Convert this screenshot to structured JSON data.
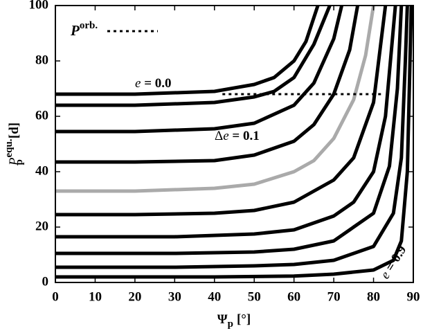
{
  "chart_data": {
    "type": "line",
    "xlabel": {
      "main": "Ψ",
      "sub": "p",
      "unit": "[°]"
    },
    "ylabel": {
      "main": "P",
      "sub": "p",
      "sup": "equ.",
      "unit": "[d]"
    },
    "xlim": [
      0,
      90
    ],
    "xticks": [
      0,
      10,
      20,
      30,
      40,
      50,
      60,
      70,
      80,
      90
    ],
    "ylim": [
      0,
      100
    ],
    "yticks": [
      0,
      20,
      40,
      60,
      80,
      100
    ],
    "series": [
      {
        "color": "#000000",
        "x": [
          0,
          20,
          40,
          50,
          55,
          60,
          63,
          66
        ],
        "values": [
          68,
          68,
          69,
          71.5,
          74,
          80,
          87,
          100
        ]
      },
      {
        "color": "#000000",
        "x": [
          0,
          20,
          40,
          50,
          55,
          60,
          65,
          69
        ],
        "values": [
          64,
          64,
          65,
          67,
          69,
          74,
          86,
          100
        ]
      },
      {
        "color": "#000000",
        "x": [
          0,
          20,
          40,
          50,
          60,
          65,
          70,
          72
        ],
        "values": [
          54.5,
          54.5,
          55.5,
          57.5,
          64,
          72,
          88,
          100
        ]
      },
      {
        "color": "#000000",
        "x": [
          0,
          20,
          40,
          50,
          60,
          65,
          70,
          74,
          76
        ],
        "values": [
          43.5,
          43.5,
          44,
          46,
          51,
          57,
          68,
          84,
          100
        ]
      },
      {
        "color": "#aaaaaa",
        "x": [
          0,
          20,
          40,
          50,
          60,
          65,
          70,
          75,
          78,
          80
        ],
        "values": [
          33,
          33,
          34,
          35.5,
          40,
          44,
          52,
          66,
          82,
          100
        ]
      },
      {
        "color": "#000000",
        "x": [
          0,
          20,
          40,
          50,
          60,
          70,
          75,
          80,
          83
        ],
        "values": [
          24.5,
          24.5,
          25,
          26,
          29,
          37,
          45,
          65,
          100
        ]
      },
      {
        "color": "#000000",
        "x": [
          0,
          30,
          50,
          60,
          70,
          75,
          80,
          83,
          85.5
        ],
        "values": [
          16.5,
          16.5,
          17.5,
          19,
          24,
          29,
          40,
          60,
          100
        ]
      },
      {
        "color": "#000000",
        "x": [
          0,
          30,
          50,
          60,
          70,
          80,
          84,
          86,
          87
        ],
        "values": [
          10.5,
          10.5,
          11,
          12,
          15,
          25,
          42,
          70,
          100
        ]
      },
      {
        "color": "#000000",
        "x": [
          0,
          30,
          50,
          60,
          70,
          80,
          85,
          87,
          88,
          88.5
        ],
        "values": [
          5.5,
          5.5,
          6,
          6.5,
          8,
          13,
          25,
          45,
          80,
          100
        ]
      },
      {
        "color": "#000000",
        "x": [
          0,
          40,
          60,
          70,
          80,
          85,
          87,
          88.5,
          89.5
        ],
        "values": [
          2,
          2,
          2.3,
          3,
          4.5,
          8,
          15,
          40,
          100
        ]
      }
    ],
    "orbital_period": {
      "value": 68,
      "xrange": [
        42,
        82
      ],
      "label_main": "P",
      "label_sup": "orb."
    },
    "annotations": [
      {
        "parts": [
          "e",
          " = 0.0"
        ]
      },
      {
        "parts": [
          "Δ",
          "e",
          " = 0.1"
        ]
      },
      {
        "parts": [
          "e",
          " = 0.9"
        ]
      }
    ]
  }
}
